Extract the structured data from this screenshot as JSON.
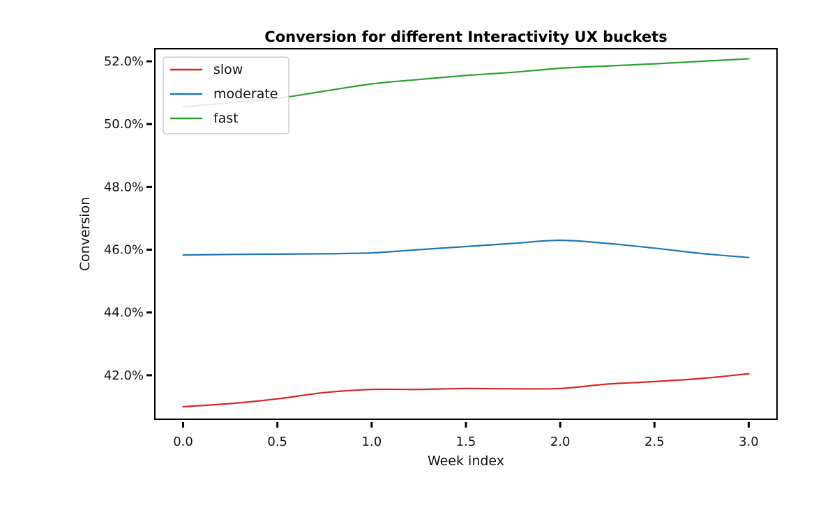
{
  "chart_data": {
    "type": "line",
    "title": "Conversion for different Interactivity UX buckets",
    "xlabel": "Week index",
    "ylabel": "Conversion",
    "xlim": [
      -0.15,
      3.15
    ],
    "ylim": [
      40.6,
      52.4
    ],
    "x_ticks": [
      0.0,
      0.5,
      1.0,
      1.5,
      2.0,
      2.5,
      3.0
    ],
    "x_tick_labels": [
      "0.0",
      "0.5",
      "1.0",
      "1.5",
      "2.0",
      "2.5",
      "3.0"
    ],
    "y_ticks": [
      42.0,
      44.0,
      46.0,
      48.0,
      50.0,
      52.0
    ],
    "y_tick_labels": [
      "42.0%",
      "44.0%",
      "46.0%",
      "48.0%",
      "50.0%",
      "52.0%"
    ],
    "grid": false,
    "legend_position": "top-left",
    "series": [
      {
        "name": "slow",
        "color": "#d62728",
        "x": [
          0.0,
          0.25,
          0.5,
          0.75,
          1.0,
          1.25,
          1.5,
          1.75,
          2.0,
          2.25,
          2.5,
          2.75,
          3.0
        ],
        "y": [
          41.0,
          41.1,
          41.25,
          41.45,
          41.55,
          41.55,
          41.58,
          41.57,
          41.58,
          41.72,
          41.8,
          41.9,
          42.05
        ]
      },
      {
        "name": "moderate",
        "color": "#1f77b4",
        "x": [
          0.0,
          0.25,
          0.5,
          0.75,
          1.0,
          1.25,
          1.5,
          1.75,
          2.0,
          2.25,
          2.5,
          2.75,
          3.0
        ],
        "y": [
          45.83,
          45.85,
          45.86,
          45.87,
          45.9,
          46.0,
          46.1,
          46.2,
          46.3,
          46.2,
          46.05,
          45.88,
          45.75
        ]
      },
      {
        "name": "fast",
        "color": "#2ca02c",
        "x": [
          0.0,
          0.25,
          0.5,
          0.75,
          1.0,
          1.25,
          1.5,
          1.75,
          2.0,
          2.25,
          2.5,
          2.75,
          3.0
        ],
        "y": [
          50.55,
          50.68,
          50.82,
          51.05,
          51.28,
          51.42,
          51.55,
          51.65,
          51.78,
          51.85,
          51.92,
          52.0,
          52.08
        ]
      }
    ]
  }
}
